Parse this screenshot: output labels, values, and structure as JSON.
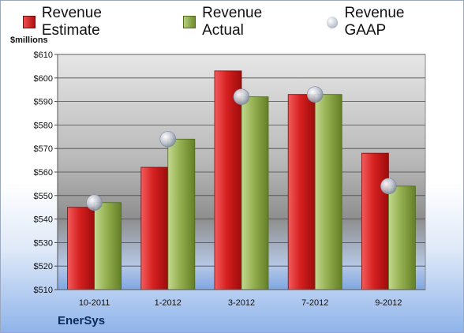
{
  "chart_data": {
    "type": "bar",
    "categories": [
      "10-2011",
      "1-2012",
      "3-2012",
      "7-2012",
      "9-2012"
    ],
    "series": [
      {
        "name": "Revenue Estimate",
        "values": [
          545,
          562,
          603,
          593,
          568
        ],
        "color": "#c81818"
      },
      {
        "name": "Revenue Actual",
        "values": [
          547,
          574,
          592,
          593,
          554
        ],
        "color": "#8aa547"
      },
      {
        "name": "Revenue GAAP",
        "values": [
          547,
          574,
          592,
          593,
          554
        ],
        "color": "#c6ccd8"
      }
    ],
    "ylabel": "$millions",
    "ylim": [
      510,
      610
    ],
    "yticks": [
      "$510",
      "$520",
      "$530",
      "$540",
      "$550",
      "$560",
      "$570",
      "$580",
      "$590",
      "$600",
      "$610"
    ],
    "grid": true,
    "legend": "top"
  },
  "footer": {
    "brand": "EnerSys"
  }
}
